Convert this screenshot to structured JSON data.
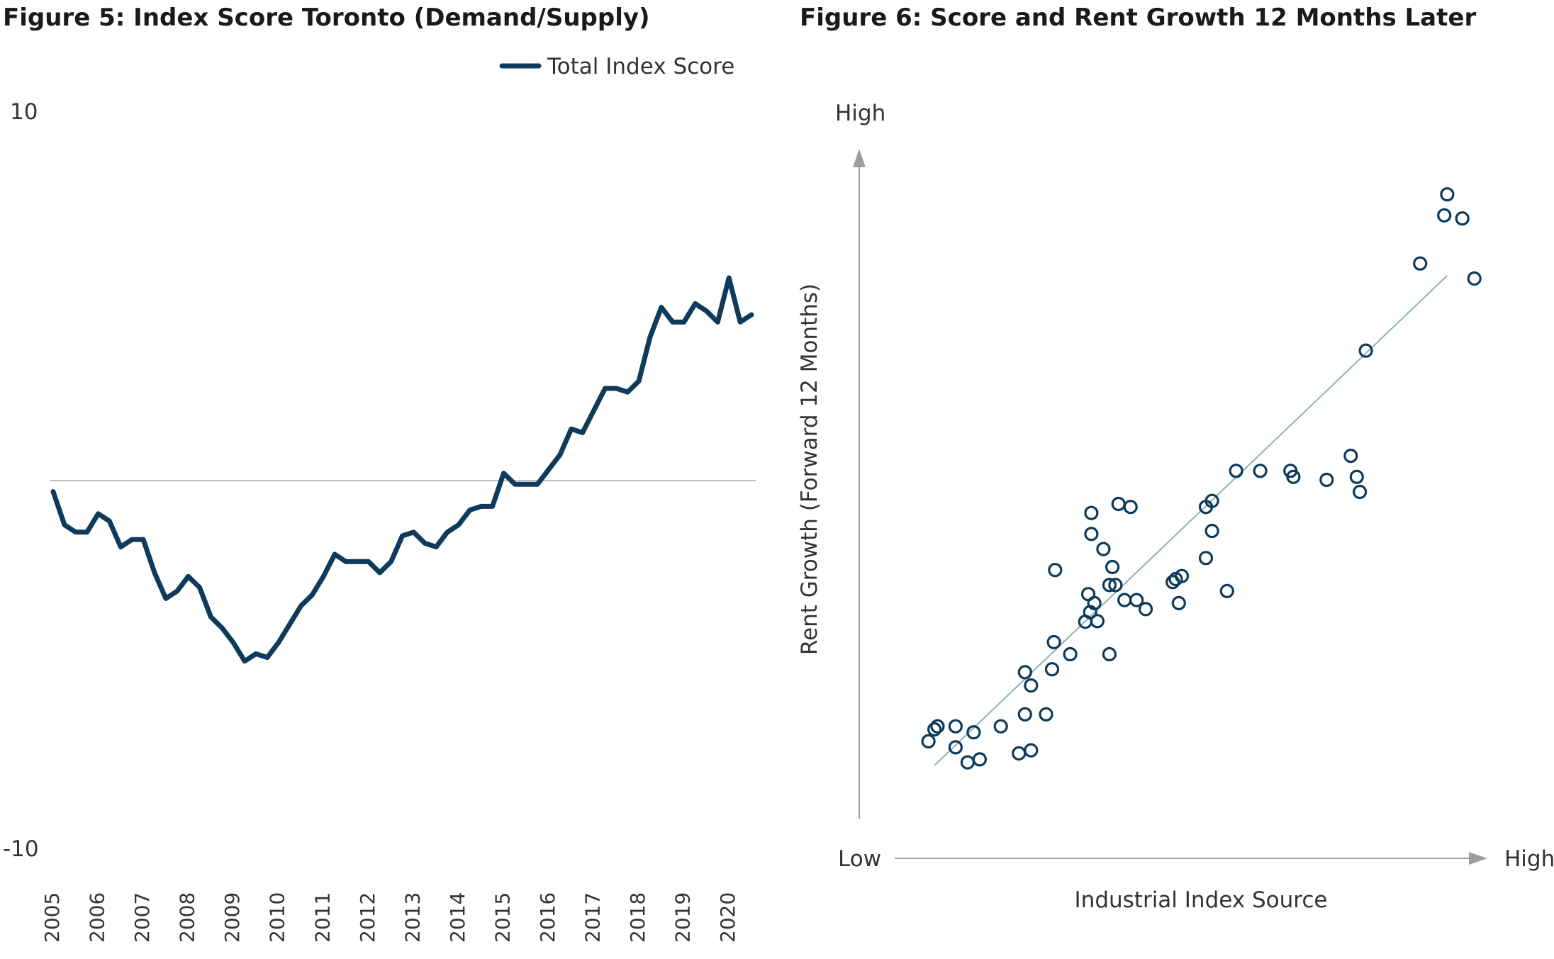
{
  "colors": {
    "series": "#0e3a5c",
    "zero_line": "#bdbdbd",
    "trend_line": "#8fb3ae",
    "axis_arrow": "#9e9e9e",
    "text": "#333333"
  },
  "chart_data": [
    {
      "type": "line",
      "title": "Figure 5: Index Score Toronto (Demand/Supply)",
      "legend": {
        "position": "top-right",
        "entries": [
          "Total Index Score"
        ]
      },
      "ylim": [
        -10,
        10
      ],
      "y_tick_labels": [
        "10",
        "-10"
      ],
      "x_tick_labels": [
        "2005",
        "2006",
        "2007",
        "2008",
        "2009",
        "2010",
        "2011",
        "2012",
        "2013",
        "2014",
        "2015",
        "2016",
        "2017",
        "2018",
        "2019",
        "2020"
      ],
      "reference_line_y": 0,
      "grid": false,
      "series": [
        {
          "name": "Total Index Score",
          "x": [
            2005.0,
            2005.25,
            2005.5,
            2005.75,
            2006.0,
            2006.25,
            2006.5,
            2006.75,
            2007.0,
            2007.25,
            2007.5,
            2007.75,
            2008.0,
            2008.25,
            2008.5,
            2008.75,
            2009.0,
            2009.25,
            2009.5,
            2009.75,
            2010.0,
            2010.25,
            2010.5,
            2010.75,
            2011.0,
            2011.25,
            2011.5,
            2011.75,
            2012.0,
            2012.25,
            2012.5,
            2012.75,
            2013.0,
            2013.25,
            2013.5,
            2013.75,
            2014.0,
            2014.25,
            2014.5,
            2014.75,
            2015.0,
            2015.25,
            2015.5,
            2015.75,
            2016.0,
            2016.25,
            2016.5,
            2016.75,
            2017.0,
            2017.25,
            2017.5,
            2017.75,
            2018.0,
            2018.25,
            2018.5,
            2018.75,
            2019.0,
            2019.25,
            2019.5,
            2019.75,
            2020.0,
            2020.25,
            2020.5
          ],
          "values": [
            -0.3,
            -1.2,
            -1.4,
            -1.4,
            -0.9,
            -1.1,
            -1.8,
            -1.6,
            -1.6,
            -2.5,
            -3.2,
            -3.0,
            -2.6,
            -2.9,
            -3.7,
            -4.0,
            -4.4,
            -4.9,
            -4.7,
            -4.8,
            -4.4,
            -3.9,
            -3.4,
            -3.1,
            -2.6,
            -2.0,
            -2.2,
            -2.2,
            -2.2,
            -2.5,
            -2.2,
            -1.5,
            -1.4,
            -1.7,
            -1.8,
            -1.4,
            -1.2,
            -0.8,
            -0.7,
            -0.7,
            0.2,
            -0.1,
            -0.1,
            -0.1,
            0.3,
            0.7,
            1.4,
            1.3,
            1.9,
            2.5,
            2.5,
            2.4,
            2.7,
            3.9,
            4.7,
            4.3,
            4.3,
            4.8,
            4.6,
            4.3,
            5.5,
            4.3,
            4.5
          ]
        }
      ]
    },
    {
      "type": "scatter",
      "title": "Figure 6: Score and Rent Growth 12 Months Later",
      "xlabel": "Industrial Index Source",
      "ylabel": "Rent Growth (Forward 12 Months)",
      "x_tick_labels": [
        "Low",
        "High"
      ],
      "y_tick_labels": [
        "High"
      ],
      "xlim": [
        0,
        1
      ],
      "ylim": [
        0,
        1
      ],
      "grid": false,
      "trendline": {
        "x": [
          0.1,
          0.95
        ],
        "y": [
          0.045,
          0.86
        ]
      },
      "points": [
        [
          0.09,
          0.085
        ],
        [
          0.1,
          0.105
        ],
        [
          0.105,
          0.11
        ],
        [
          0.135,
          0.075
        ],
        [
          0.135,
          0.11
        ],
        [
          0.155,
          0.05
        ],
        [
          0.165,
          0.1
        ],
        [
          0.175,
          0.055
        ],
        [
          0.21,
          0.11
        ],
        [
          0.24,
          0.065
        ],
        [
          0.25,
          0.13
        ],
        [
          0.25,
          0.2
        ],
        [
          0.26,
          0.07
        ],
        [
          0.26,
          0.178
        ],
        [
          0.285,
          0.13
        ],
        [
          0.295,
          0.205
        ],
        [
          0.298,
          0.25
        ],
        [
          0.3,
          0.37
        ],
        [
          0.325,
          0.23
        ],
        [
          0.35,
          0.284
        ],
        [
          0.355,
          0.33
        ],
        [
          0.358,
          0.3
        ],
        [
          0.36,
          0.43
        ],
        [
          0.36,
          0.465
        ],
        [
          0.365,
          0.315
        ],
        [
          0.37,
          0.285
        ],
        [
          0.38,
          0.405
        ],
        [
          0.39,
          0.345
        ],
        [
          0.395,
          0.375
        ],
        [
          0.39,
          0.23
        ],
        [
          0.4,
          0.345
        ],
        [
          0.405,
          0.48
        ],
        [
          0.415,
          0.32
        ],
        [
          0.425,
          0.475
        ],
        [
          0.435,
          0.32
        ],
        [
          0.45,
          0.305
        ],
        [
          0.495,
          0.35
        ],
        [
          0.5,
          0.355
        ],
        [
          0.505,
          0.315
        ],
        [
          0.51,
          0.36
        ],
        [
          0.55,
          0.475
        ],
        [
          0.55,
          0.39
        ],
        [
          0.56,
          0.435
        ],
        [
          0.56,
          0.485
        ],
        [
          0.585,
          0.335
        ],
        [
          0.6,
          0.535
        ],
        [
          0.64,
          0.535
        ],
        [
          0.69,
          0.535
        ],
        [
          0.695,
          0.525
        ],
        [
          0.75,
          0.52
        ],
        [
          0.79,
          0.56
        ],
        [
          0.8,
          0.525
        ],
        [
          0.805,
          0.5
        ],
        [
          0.815,
          0.735
        ],
        [
          0.905,
          0.88
        ],
        [
          0.945,
          0.96
        ],
        [
          0.95,
          0.995
        ],
        [
          0.975,
          0.955
        ],
        [
          0.995,
          0.855
        ]
      ]
    }
  ]
}
